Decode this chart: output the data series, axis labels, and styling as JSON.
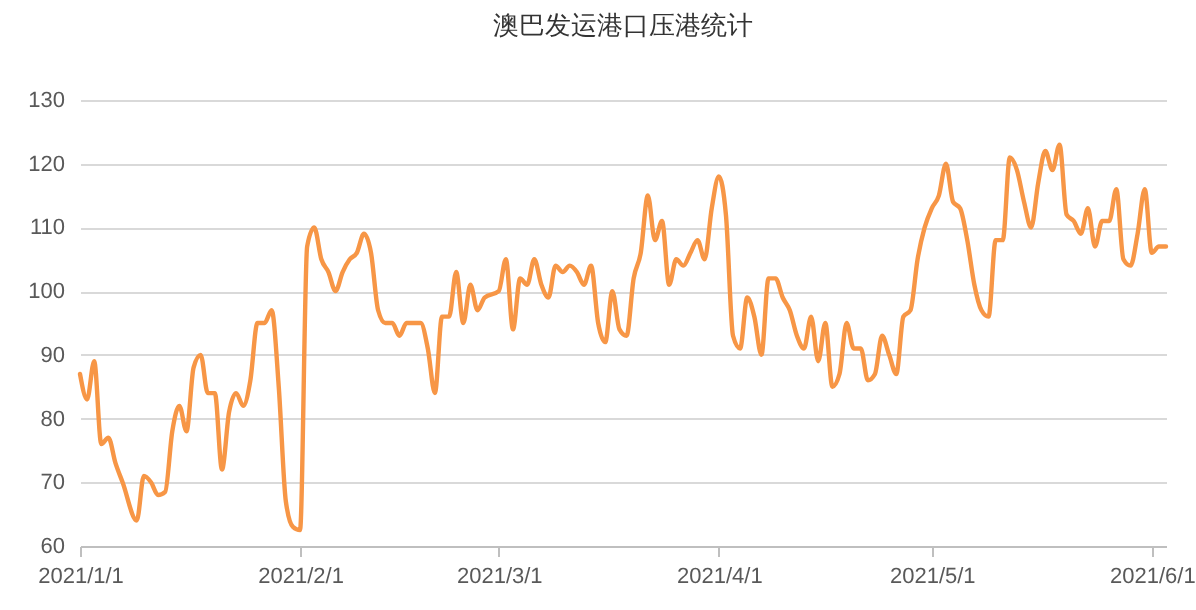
{
  "chart_data": {
    "type": "line",
    "title": "澳巴发运港口压港统计",
    "x": [
      "2021-01-01",
      "2021-01-02",
      "2021-01-03",
      "2021-01-04",
      "2021-01-05",
      "2021-01-06",
      "2021-01-07",
      "2021-01-09",
      "2021-01-10",
      "2021-01-11",
      "2021-01-12",
      "2021-01-13",
      "2021-01-14",
      "2021-01-15",
      "2021-01-16",
      "2021-01-17",
      "2021-01-18",
      "2021-01-19",
      "2021-01-20",
      "2021-01-21",
      "2021-01-22",
      "2021-01-23",
      "2021-01-24",
      "2021-01-25",
      "2021-01-26",
      "2021-01-27",
      "2021-01-28",
      "2021-01-29",
      "2021-01-30",
      "2021-01-31",
      "2021-02-01",
      "2021-02-02",
      "2021-02-03",
      "2021-02-04",
      "2021-02-05",
      "2021-02-06",
      "2021-02-07",
      "2021-02-08",
      "2021-02-09",
      "2021-02-10",
      "2021-02-11",
      "2021-02-12",
      "2021-02-13",
      "2021-02-14",
      "2021-02-15",
      "2021-02-16",
      "2021-02-17",
      "2021-02-18",
      "2021-02-19",
      "2021-02-20",
      "2021-02-21",
      "2021-02-22",
      "2021-02-23",
      "2021-02-24",
      "2021-02-25",
      "2021-02-26",
      "2021-02-27",
      "2021-03-01",
      "2021-03-02",
      "2021-03-03",
      "2021-03-04",
      "2021-03-05",
      "2021-03-06",
      "2021-03-07",
      "2021-03-08",
      "2021-03-09",
      "2021-03-10",
      "2021-03-11",
      "2021-03-12",
      "2021-03-13",
      "2021-03-14",
      "2021-03-15",
      "2021-03-16",
      "2021-03-17",
      "2021-03-18",
      "2021-03-19",
      "2021-03-20",
      "2021-03-21",
      "2021-03-22",
      "2021-03-23",
      "2021-03-24",
      "2021-03-25",
      "2021-03-26",
      "2021-03-27",
      "2021-03-28",
      "2021-03-29",
      "2021-03-30",
      "2021-03-31",
      "2021-04-01",
      "2021-04-02",
      "2021-04-03",
      "2021-04-04",
      "2021-04-05",
      "2021-04-06",
      "2021-04-07",
      "2021-04-08",
      "2021-04-09",
      "2021-04-10",
      "2021-04-11",
      "2021-04-12",
      "2021-04-13",
      "2021-04-14",
      "2021-04-15",
      "2021-04-16",
      "2021-04-17",
      "2021-04-18",
      "2021-04-19",
      "2021-04-20",
      "2021-04-21",
      "2021-04-22",
      "2021-04-23",
      "2021-04-24",
      "2021-04-25",
      "2021-04-26",
      "2021-04-27",
      "2021-04-28",
      "2021-04-29",
      "2021-04-30",
      "2021-05-01",
      "2021-05-02",
      "2021-05-03",
      "2021-05-04",
      "2021-05-05",
      "2021-05-06",
      "2021-05-07",
      "2021-05-08",
      "2021-05-09",
      "2021-05-10",
      "2021-05-11",
      "2021-05-12",
      "2021-05-13",
      "2021-05-14",
      "2021-05-15",
      "2021-05-16",
      "2021-05-17",
      "2021-05-18",
      "2021-05-19",
      "2021-05-20",
      "2021-05-21",
      "2021-05-22",
      "2021-05-23",
      "2021-05-24",
      "2021-05-25",
      "2021-05-26",
      "2021-05-27",
      "2021-05-28",
      "2021-05-29",
      "2021-05-30",
      "2021-05-31",
      "2021-06-01",
      "2021-06-02",
      "2021-06-03"
    ],
    "series": [
      {
        "color": "#f79646",
        "values": [
          87,
          83,
          89,
          76,
          77,
          73,
          70,
          64,
          71,
          70,
          68,
          68.5,
          78,
          82,
          78,
          88,
          90,
          84,
          84,
          72,
          81,
          84,
          82,
          86,
          95,
          95,
          97,
          85,
          67,
          63,
          62.5,
          107,
          110,
          105,
          103,
          100,
          103,
          105,
          106,
          109,
          106,
          97,
          95,
          95,
          93,
          95,
          95,
          95,
          91,
          84,
          96,
          96,
          103,
          95,
          101,
          97,
          99,
          100,
          105,
          94,
          102,
          101,
          105,
          101,
          99,
          104,
          103,
          104,
          103,
          101,
          104,
          95,
          92,
          100,
          94,
          93,
          102,
          106,
          115,
          108,
          111,
          101,
          105,
          104,
          106,
          108,
          105,
          113,
          118,
          112,
          93,
          91,
          99,
          96,
          90,
          102,
          102,
          99,
          97,
          93,
          91,
          96,
          89,
          95,
          85,
          87,
          95,
          91,
          91,
          86,
          87,
          93,
          90,
          87,
          96,
          97,
          105,
          110,
          113,
          115,
          120,
          114,
          113,
          108,
          101,
          97,
          96,
          108,
          108,
          121,
          119,
          114,
          110,
          117,
          122,
          119,
          123,
          112,
          111,
          109,
          113,
          107,
          111,
          111,
          116,
          105,
          104,
          109,
          116,
          106,
          107,
          107
        ]
      }
    ],
    "xlim": [
      "2021-01-01",
      "2021-06-03"
    ],
    "xticks": [
      {
        "value": "2021-01-01",
        "label": "2021/1/1"
      },
      {
        "value": "2021-02-01",
        "label": "2021/2/1"
      },
      {
        "value": "2021-03-01",
        "label": "2021/3/1"
      },
      {
        "value": "2021-04-01",
        "label": "2021/4/1"
      },
      {
        "value": "2021-05-01",
        "label": "2021/5/1"
      },
      {
        "value": "2021-06-01",
        "label": "2021/6/1"
      }
    ],
    "ylim": [
      60,
      130
    ],
    "yticks": [
      60,
      70,
      80,
      90,
      100,
      110,
      120,
      130
    ],
    "grid": "y",
    "marker": "none",
    "line_style": "solid",
    "legend": false
  }
}
